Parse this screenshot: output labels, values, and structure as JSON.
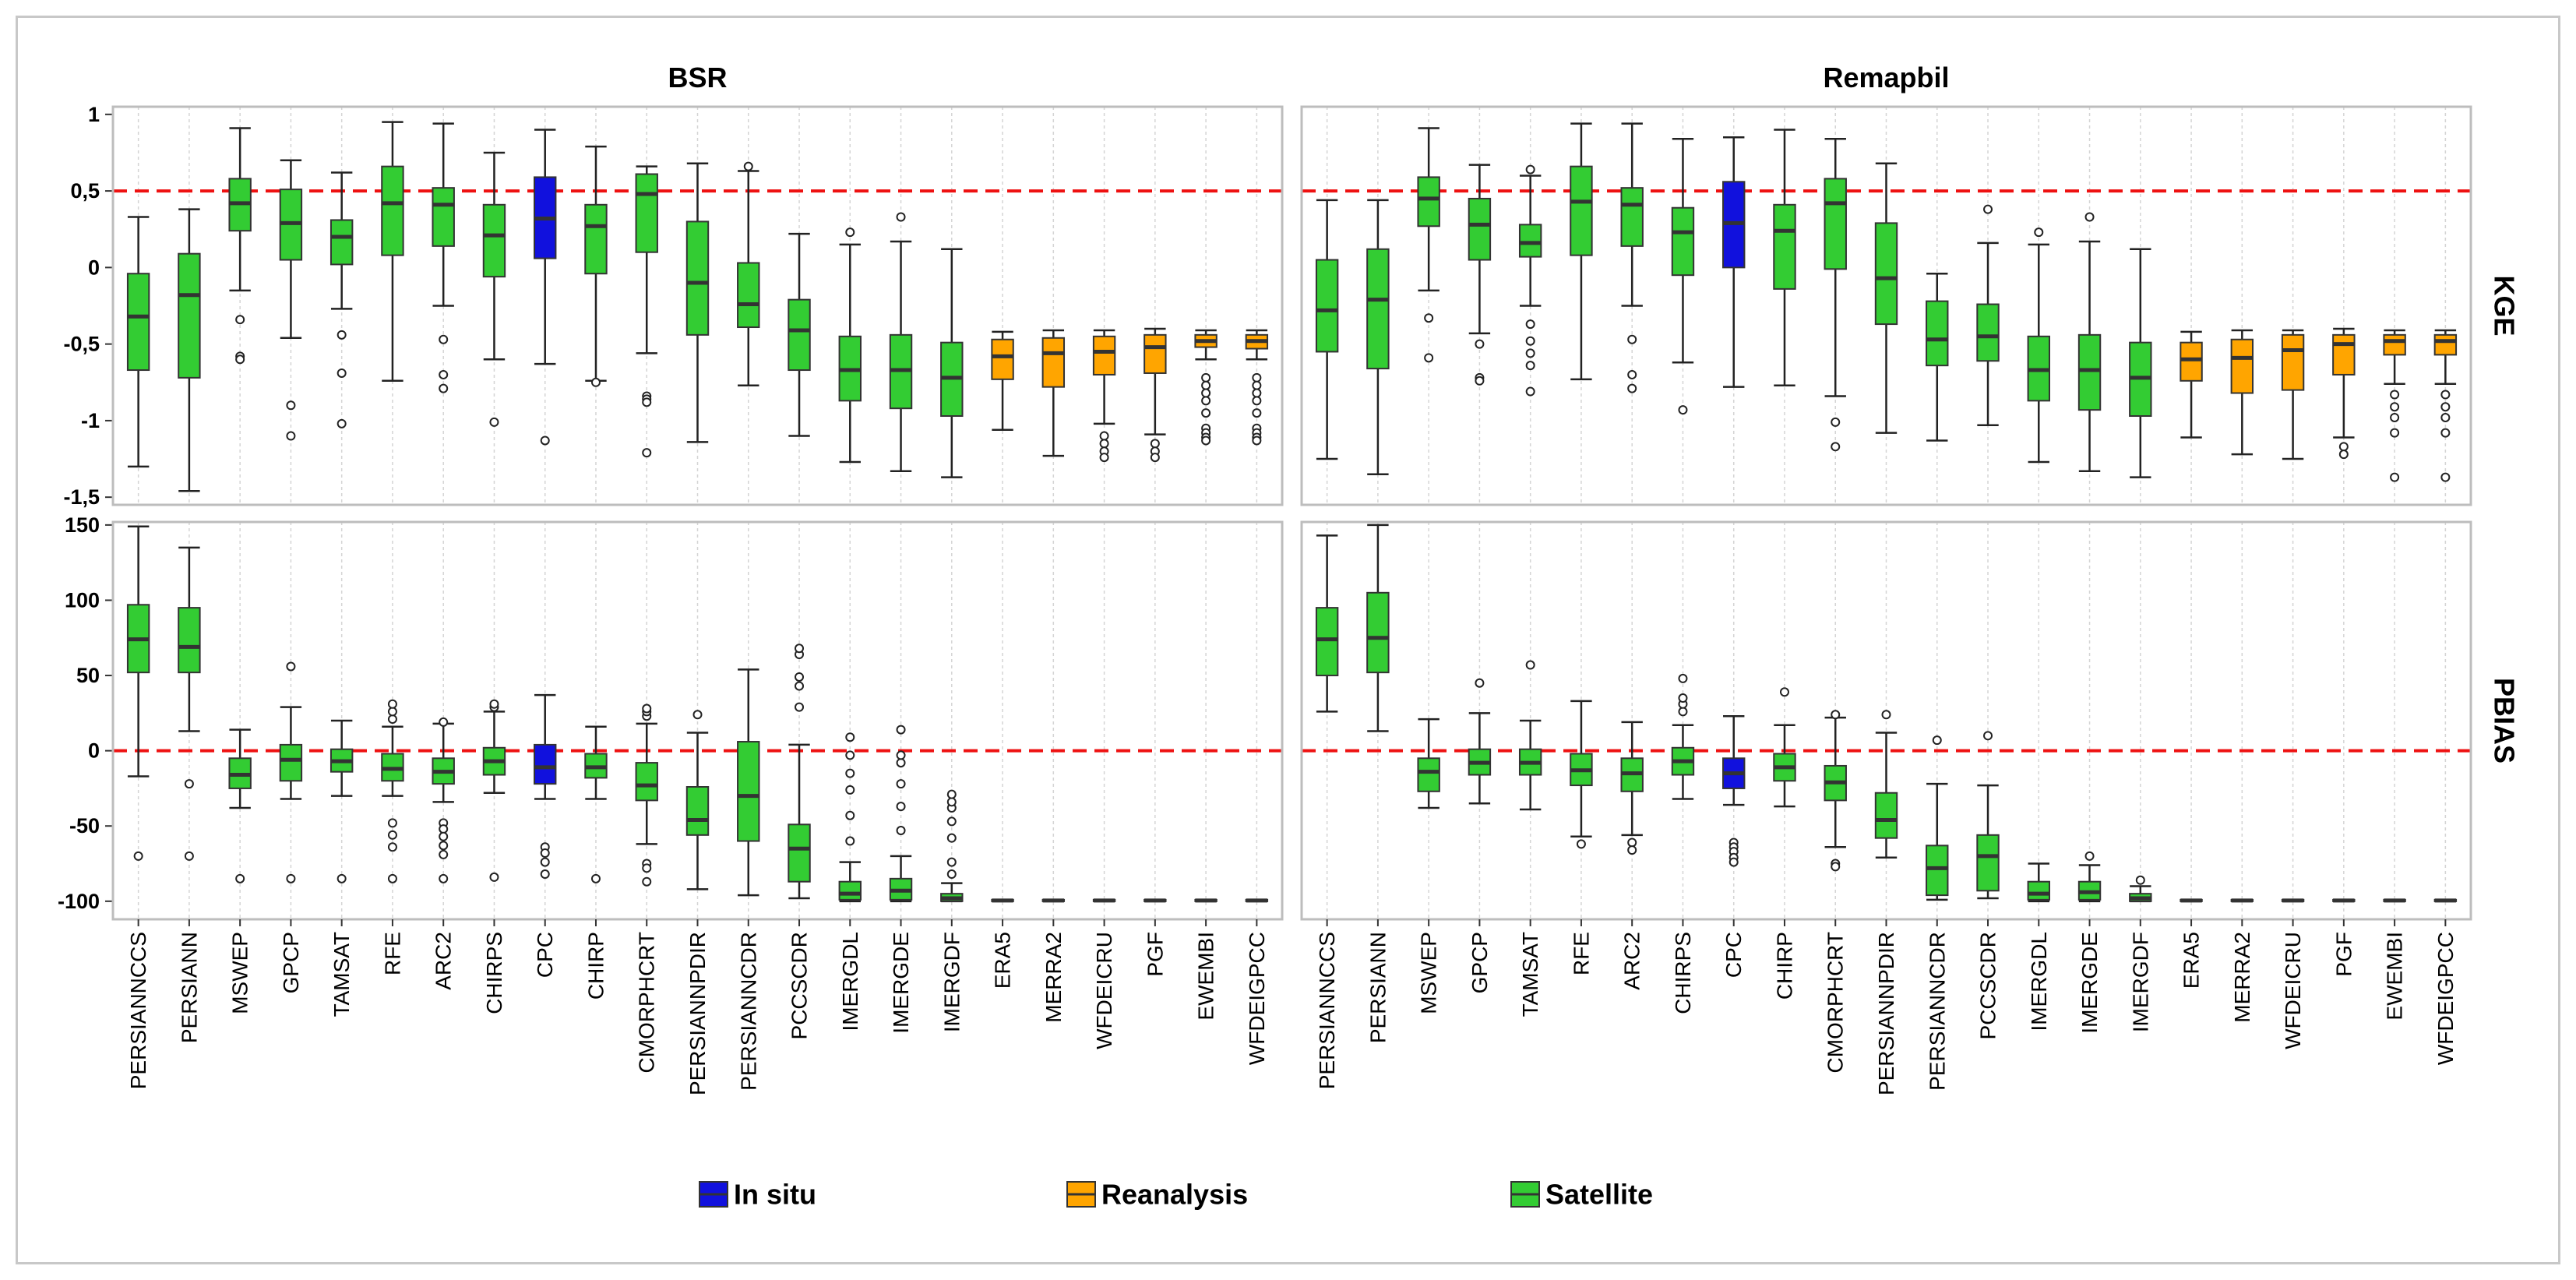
{
  "legend": [
    {
      "label": "In situ",
      "color": "#1111dd"
    },
    {
      "label": "Reanalysis",
      "color": "#ffa500"
    },
    {
      "label": "Satellite",
      "color": "#33cc33"
    }
  ],
  "chart_data": {
    "type": "boxplot",
    "columns": [
      "BSR",
      "Remapbil"
    ],
    "rows": [
      "KGE",
      "PBIAS"
    ],
    "categories": [
      "PERSIANNCCS",
      "PERSIANN",
      "MSWEP",
      "GPCP",
      "TAMSAT",
      "RFE",
      "ARC2",
      "CHIRPS",
      "CPC",
      "CHIRP",
      "CMORPHCRT",
      "PERSIANNPDIR",
      "PERSIANNCDR",
      "PCCSCDR",
      "IMERGDL",
      "IMERGDE",
      "IMERGDF",
      "ERA5",
      "MERRA2",
      "WFDEICRU",
      "PGF",
      "EWEMBI",
      "WFDEIGPCC"
    ],
    "category_types": [
      "Satellite",
      "Satellite",
      "Satellite",
      "Satellite",
      "Satellite",
      "Satellite",
      "Satellite",
      "Satellite",
      "In situ",
      "Satellite",
      "Satellite",
      "Satellite",
      "Satellite",
      "Satellite",
      "Satellite",
      "Satellite",
      "Satellite",
      "Reanalysis",
      "Reanalysis",
      "Reanalysis",
      "Reanalysis",
      "Reanalysis",
      "Reanalysis"
    ],
    "axes": {
      "KGE": {
        "ylim": [
          -1.55,
          1.05
        ],
        "ticks": [
          1,
          0.5,
          0,
          -0.5,
          -1,
          -1.5
        ],
        "tick_labels": [
          "1",
          "0,5",
          "0",
          "-0,5",
          "-1",
          "-1,5"
        ],
        "reference_line": 0.5
      },
      "PBIAS": {
        "ylim": [
          -112,
          152
        ],
        "ticks": [
          150,
          100,
          50,
          0,
          -50,
          -100
        ],
        "tick_labels": [
          "150",
          "100",
          "50",
          "0",
          "-50",
          "-100"
        ],
        "reference_line": 0
      }
    },
    "panels": {
      "KGE_BSR": [
        [
          -1.3,
          -0.67,
          -0.32,
          -0.04,
          0.33,
          []
        ],
        [
          -1.46,
          -0.72,
          -0.18,
          0.09,
          0.38,
          []
        ],
        [
          -0.15,
          0.24,
          0.42,
          0.58,
          0.91,
          [
            -0.34,
            -0.58,
            -0.6
          ]
        ],
        [
          -0.46,
          0.05,
          0.29,
          0.51,
          0.7,
          [
            -0.9,
            -1.1
          ]
        ],
        [
          -0.27,
          0.02,
          0.2,
          0.31,
          0.62,
          [
            -0.44,
            -0.69,
            -1.02
          ]
        ],
        [
          -0.74,
          0.08,
          0.42,
          0.66,
          0.95,
          []
        ],
        [
          -0.25,
          0.14,
          0.41,
          0.52,
          0.94,
          [
            -0.47,
            -0.7,
            -0.79
          ]
        ],
        [
          -0.6,
          -0.06,
          0.21,
          0.41,
          0.75,
          [
            -1.01
          ]
        ],
        [
          -0.63,
          0.06,
          0.32,
          0.59,
          0.9,
          [
            -1.13
          ]
        ],
        [
          -0.74,
          -0.04,
          0.27,
          0.41,
          0.79,
          [
            -0.75
          ]
        ],
        [
          -0.56,
          0.1,
          0.48,
          0.61,
          0.66,
          [
            -0.84,
            -0.86,
            -0.88,
            -1.21
          ]
        ],
        [
          -1.14,
          -0.44,
          -0.1,
          0.3,
          0.68,
          []
        ],
        [
          -0.77,
          -0.39,
          -0.24,
          0.03,
          0.63,
          [
            0.66
          ]
        ],
        [
          -1.1,
          -0.67,
          -0.41,
          -0.21,
          0.22,
          []
        ],
        [
          -1.27,
          -0.87,
          -0.67,
          -0.45,
          0.15,
          [
            0.23
          ]
        ],
        [
          -1.33,
          -0.92,
          -0.67,
          -0.44,
          0.17,
          [
            0.33
          ]
        ],
        [
          -1.37,
          -0.97,
          -0.72,
          -0.49,
          0.12,
          []
        ],
        [
          -1.06,
          -0.73,
          -0.58,
          -0.47,
          -0.42,
          []
        ],
        [
          -1.23,
          -0.78,
          -0.56,
          -0.46,
          -0.41,
          []
        ],
        [
          -1.02,
          -0.7,
          -0.55,
          -0.45,
          -0.41,
          [
            -1.1,
            -1.15,
            -1.2,
            -1.24
          ]
        ],
        [
          -1.09,
          -0.69,
          -0.52,
          -0.44,
          -0.4,
          [
            -1.15,
            -1.2,
            -1.24
          ]
        ],
        [
          -0.6,
          -0.52,
          -0.48,
          -0.44,
          -0.41,
          [
            -0.72,
            -0.77,
            -0.82,
            -0.87,
            -0.95,
            -1.05,
            -1.08,
            -1.11,
            -1.13
          ]
        ],
        [
          -0.6,
          -0.53,
          -0.48,
          -0.44,
          -0.41,
          [
            -0.72,
            -0.77,
            -0.82,
            -0.87,
            -0.95,
            -1.05,
            -1.08,
            -1.11,
            -1.13
          ]
        ]
      ],
      "KGE_Remapbil": [
        [
          -1.25,
          -0.55,
          -0.28,
          0.05,
          0.44,
          []
        ],
        [
          -1.35,
          -0.66,
          -0.21,
          0.12,
          0.44,
          []
        ],
        [
          -0.15,
          0.27,
          0.45,
          0.59,
          0.91,
          [
            -0.33,
            -0.59
          ]
        ],
        [
          -0.43,
          0.05,
          0.28,
          0.45,
          0.67,
          [
            -0.5,
            -0.72,
            -0.74
          ]
        ],
        [
          -0.25,
          0.07,
          0.16,
          0.28,
          0.6,
          [
            -0.37,
            -0.48,
            -0.56,
            -0.64,
            -0.81,
            0.64
          ]
        ],
        [
          -0.73,
          0.08,
          0.43,
          0.66,
          0.94,
          []
        ],
        [
          -0.25,
          0.14,
          0.41,
          0.52,
          0.94,
          [
            -0.47,
            -0.7,
            -0.79
          ]
        ],
        [
          -0.62,
          -0.05,
          0.23,
          0.39,
          0.84,
          [
            -0.93
          ]
        ],
        [
          -0.78,
          0,
          0.29,
          0.56,
          0.85,
          []
        ],
        [
          -0.77,
          -0.14,
          0.24,
          0.41,
          0.9,
          []
        ],
        [
          -0.84,
          -0.01,
          0.42,
          0.58,
          0.84,
          [
            -1.01,
            -1.17
          ]
        ],
        [
          -1.08,
          -0.37,
          -0.07,
          0.29,
          0.68,
          []
        ],
        [
          -1.13,
          -0.64,
          -0.47,
          -0.22,
          -0.04,
          []
        ],
        [
          -1.03,
          -0.61,
          -0.45,
          -0.24,
          0.16,
          [
            0.38
          ]
        ],
        [
          -1.27,
          -0.87,
          -0.67,
          -0.45,
          0.15,
          [
            0.23
          ]
        ],
        [
          -1.33,
          -0.93,
          -0.67,
          -0.44,
          0.17,
          [
            0.33
          ]
        ],
        [
          -1.37,
          -0.97,
          -0.72,
          -0.49,
          0.12,
          []
        ],
        [
          -1.11,
          -0.74,
          -0.6,
          -0.49,
          -0.42,
          []
        ],
        [
          -1.22,
          -0.82,
          -0.59,
          -0.47,
          -0.41,
          []
        ],
        [
          -1.25,
          -0.8,
          -0.54,
          -0.44,
          -0.41,
          []
        ],
        [
          -1.11,
          -0.7,
          -0.5,
          -0.44,
          -0.4,
          [
            -1.17,
            -1.22
          ]
        ],
        [
          -0.76,
          -0.57,
          -0.48,
          -0.44,
          -0.41,
          [
            -0.83,
            -0.91,
            -0.98,
            -1.08,
            -1.37
          ]
        ],
        [
          -0.76,
          -0.57,
          -0.48,
          -0.44,
          -0.41,
          [
            -0.83,
            -0.91,
            -0.98,
            -1.08,
            -1.37
          ]
        ]
      ],
      "PBIAS_BSR": [
        [
          -17,
          52,
          74,
          97,
          149,
          [
            -70
          ]
        ],
        [
          13,
          52,
          69,
          95,
          135,
          [
            -22,
            -70
          ]
        ],
        [
          -38,
          -25,
          -16,
          -5,
          14,
          [
            -85
          ]
        ],
        [
          -32,
          -20,
          -6,
          4,
          29,
          [
            56,
            -85
          ]
        ],
        [
          -30,
          -14,
          -7,
          1,
          20,
          [
            -85
          ]
        ],
        [
          -30,
          -20,
          -12,
          -2,
          16,
          [
            21,
            26,
            31,
            -48,
            -56,
            -64,
            -85
          ]
        ],
        [
          -34,
          -22,
          -14,
          -5,
          18,
          [
            19,
            -48,
            -52,
            -57,
            -63,
            -69,
            -85
          ]
        ],
        [
          -28,
          -16,
          -7,
          2,
          26,
          [
            29,
            31,
            -84
          ]
        ],
        [
          -32,
          -22,
          -11,
          4,
          37,
          [
            -64,
            -68,
            -74,
            -82
          ]
        ],
        [
          -32,
          -18,
          -11,
          -2,
          16,
          [
            -85
          ]
        ],
        [
          -62,
          -33,
          -23,
          -8,
          18,
          [
            23,
            26,
            28,
            -75,
            -78,
            -87
          ]
        ],
        [
          -92,
          -56,
          -46,
          -24,
          12,
          [
            24
          ]
        ],
        [
          -96,
          -60,
          -30,
          6,
          54,
          []
        ],
        [
          -98,
          -87,
          -65,
          -49,
          4,
          [
            29,
            43,
            49,
            64,
            68
          ]
        ],
        [
          -100,
          -99,
          -95,
          -87,
          -74,
          [
            -60,
            -43,
            -26,
            -15,
            -3,
            9
          ]
        ],
        [
          -100,
          -99,
          -93,
          -85,
          -70,
          [
            -53,
            -37,
            -22,
            -8,
            -3,
            14
          ]
        ],
        [
          -100,
          -100,
          -98,
          -95,
          -88,
          [
            -82,
            -74,
            -58,
            -47,
            -38,
            -34,
            -29
          ]
        ],
        [
          -100,
          -100,
          -99.5,
          -99,
          -99,
          []
        ],
        [
          -100,
          -100,
          -99.5,
          -99,
          -99,
          []
        ],
        [
          -100,
          -100,
          -99.5,
          -99,
          -99,
          []
        ],
        [
          -100,
          -100,
          -99.5,
          -99,
          -99,
          []
        ],
        [
          -100,
          -100,
          -99.5,
          -99,
          -99,
          []
        ],
        [
          -100,
          -100,
          -99.5,
          -99,
          -99,
          []
        ]
      ],
      "PBIAS_Remapbil": [
        [
          26,
          50,
          74,
          95,
          143,
          []
        ],
        [
          13,
          52,
          75,
          105,
          150,
          []
        ],
        [
          -38,
          -27,
          -14,
          -5,
          21,
          []
        ],
        [
          -35,
          -16,
          -8,
          1,
          25,
          [
            45
          ]
        ],
        [
          -39,
          -16,
          -8,
          1,
          20,
          [
            57
          ]
        ],
        [
          -57,
          -23,
          -13,
          -2,
          33,
          [
            -62
          ]
        ],
        [
          -56,
          -27,
          -15,
          -5,
          19,
          [
            -61,
            -66
          ]
        ],
        [
          -32,
          -16,
          -7,
          2,
          17,
          [
            26,
            31,
            35,
            48
          ]
        ],
        [
          -36,
          -25,
          -15,
          -5,
          23,
          [
            -61,
            -64,
            -67,
            -71,
            -74
          ]
        ],
        [
          -37,
          -20,
          -11,
          -2,
          17,
          [
            39
          ]
        ],
        [
          -64,
          -33,
          -21,
          -10,
          22,
          [
            24,
            -75,
            -77
          ]
        ],
        [
          -71,
          -58,
          -46,
          -28,
          12,
          [
            24
          ]
        ],
        [
          -99,
          -96,
          -78,
          -63,
          -22,
          [
            7
          ]
        ],
        [
          -98,
          -93,
          -70,
          -56,
          -23,
          [
            10
          ]
        ],
        [
          -100,
          -99,
          -95,
          -87,
          -75,
          []
        ],
        [
          -100,
          -99,
          -94,
          -87,
          -76,
          [
            -70
          ]
        ],
        [
          -100,
          -100,
          -98,
          -95,
          -90,
          [
            -86
          ]
        ],
        [
          -100,
          -100,
          -99.5,
          -99,
          -99,
          []
        ],
        [
          -100,
          -100,
          -99.5,
          -99,
          -99,
          []
        ],
        [
          -100,
          -100,
          -99.5,
          -99,
          -99,
          []
        ],
        [
          -100,
          -100,
          -99.5,
          -99,
          -99,
          []
        ],
        [
          -100,
          -100,
          -99.5,
          -99,
          -99,
          []
        ],
        [
          -100,
          -100,
          -99.5,
          -99,
          -99,
          []
        ]
      ]
    },
    "box_format": "[whisker_low, q1, median, q3, whisker_high, [outliers]]"
  }
}
